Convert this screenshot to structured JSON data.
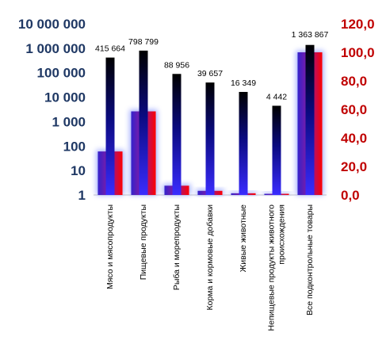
{
  "chart_data": {
    "type": "bar",
    "categories": [
      "Мясо и мясопродукты",
      "Пищевые продукты",
      "Рыба и морепродукты",
      "Корма и кормовые добавки",
      "Живые животные",
      "Непищевые продукты животного происхождения",
      "Все подконтрольные товары"
    ],
    "categories_display": [
      [
        "Мясо и мясопродукты"
      ],
      [
        "Пищевые продукты"
      ],
      [
        "Рыба и морепродукты"
      ],
      [
        "Корма и кормовые добавки"
      ],
      [
        "Живые животные"
      ],
      [
        "Непищевые продукты животного",
        "происхождения"
      ],
      [
        "Все подконтрольные товары"
      ]
    ],
    "series": [
      {
        "axis": "left",
        "scale": "log",
        "values": [
          415664,
          798799,
          88956,
          39657,
          16349,
          4442,
          1363867
        ],
        "labels": [
          "415 664",
          "798 799",
          "88 956",
          "39 657",
          "16 349",
          "4 442",
          "1 363 867"
        ],
        "color": "#1a1aa6"
      },
      {
        "axis": "right",
        "scale": "linear",
        "values": [
          30.5,
          58.6,
          6.5,
          2.9,
          1.2,
          0.3,
          100.0
        ],
        "color": "#cc0033"
      }
    ],
    "left_axis": {
      "scale": "log",
      "range": [
        1,
        10000000
      ],
      "ticks": [
        1,
        10,
        100,
        1000,
        10000,
        100000,
        1000000,
        10000000
      ],
      "tick_labels": [
        "1",
        "10",
        "100",
        "1 000",
        "10 000",
        "100 000",
        "1 000 000",
        "10 000 000"
      ],
      "color": "#1f3864"
    },
    "right_axis": {
      "scale": "linear",
      "range": [
        0,
        120
      ],
      "ticks": [
        0,
        20,
        40,
        60,
        80,
        100,
        120
      ],
      "tick_labels": [
        "0,0",
        "20,0",
        "40,0",
        "60,0",
        "80,0",
        "100,0",
        "120,0"
      ],
      "color": "#c00000"
    },
    "grid": false,
    "legend": "none"
  }
}
